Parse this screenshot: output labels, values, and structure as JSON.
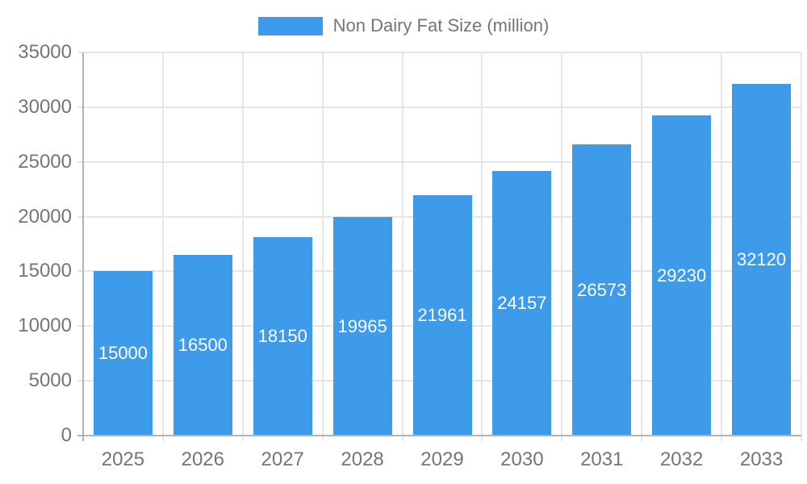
{
  "legend": {
    "label": "Non Dairy Fat Size (million)"
  },
  "chart_data": {
    "type": "bar",
    "title": "",
    "xlabel": "",
    "ylabel": "",
    "categories": [
      "2025",
      "2026",
      "2027",
      "2028",
      "2029",
      "2030",
      "2031",
      "2032",
      "2033"
    ],
    "series": [
      {
        "name": "Non Dairy Fat Size (million)",
        "values": [
          15000,
          16500,
          18150,
          19965,
          21961,
          24157,
          26573,
          29230,
          32120
        ]
      }
    ],
    "bar_labels": [
      "15000",
      "16500",
      "18150",
      "19965",
      "21961",
      "24157",
      "26573",
      "29230",
      "32120"
    ],
    "ylim": [
      0,
      35000
    ],
    "yticks": [
      0,
      5000,
      10000,
      15000,
      20000,
      25000,
      30000,
      35000
    ],
    "ytick_labels": [
      "0",
      "5000",
      "10000",
      "15000",
      "20000",
      "25000",
      "30000",
      "35000"
    ],
    "grid": true,
    "legend_position": "top",
    "colors": {
      "bar": "#3E9BEA",
      "bar_label": "#FFFFFF",
      "axis_text": "#757575",
      "axis_line": "#B3B3B3",
      "gridline": "#E6E6E6",
      "background": "#FFFFFF"
    }
  }
}
